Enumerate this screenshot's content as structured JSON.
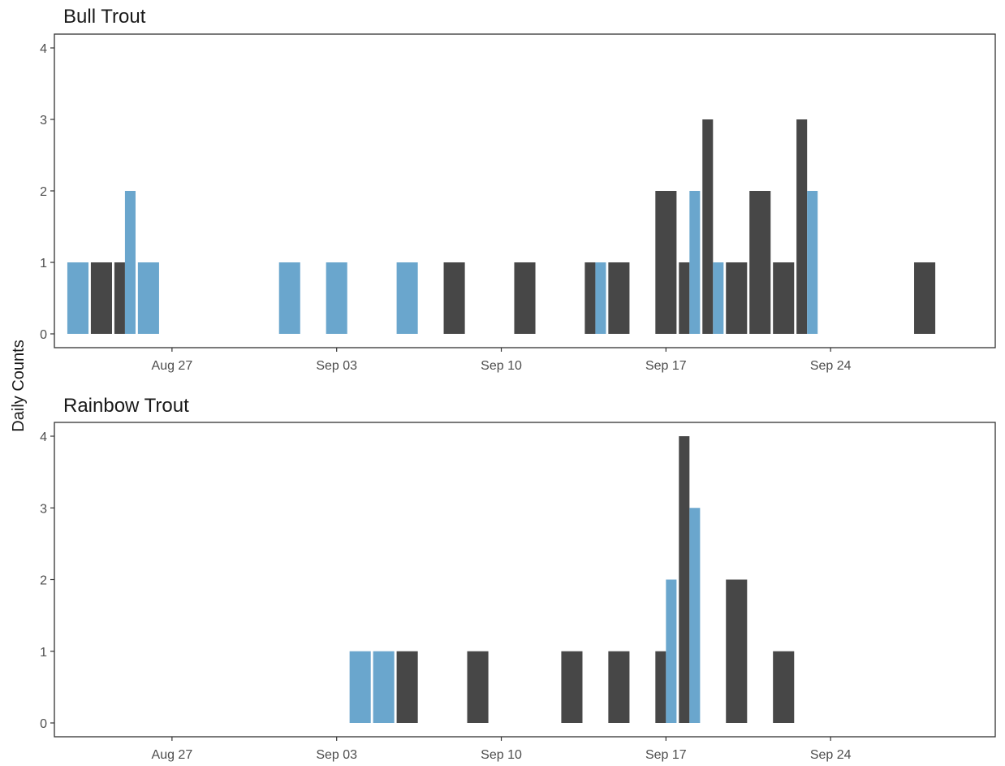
{
  "colors": {
    "series_a": "#6aa6cd",
    "series_b": "#474747",
    "panel_border": "#333333",
    "tick": "#333333"
  },
  "chart_data": {
    "type": "bar",
    "ylabel": "Daily Counts",
    "x_ticks": [
      "Aug 27",
      "Sep 03",
      "Sep 10",
      "Sep 17",
      "Sep 24"
    ],
    "x_tick_dates": [
      "2018-08-27",
      "2018-09-03",
      "2018-09-10",
      "2018-09-17",
      "2018-09-24"
    ],
    "y_ticks": [
      0,
      1,
      2,
      3,
      4
    ],
    "ylim": [
      0,
      4
    ],
    "xlim": [
      "2018-08-22",
      "2018-10-01"
    ],
    "grid": false,
    "panels": [
      {
        "title": "Bull Trout",
        "bars": [
          {
            "date": "2018-08-23",
            "dodge": "full",
            "color": "series_a",
            "value": 1
          },
          {
            "date": "2018-08-24",
            "dodge": "full",
            "color": "series_b",
            "value": 1
          },
          {
            "date": "2018-08-25",
            "dodge": "left",
            "color": "series_b",
            "value": 1
          },
          {
            "date": "2018-08-25",
            "dodge": "right",
            "color": "series_a",
            "value": 2
          },
          {
            "date": "2018-08-26",
            "dodge": "full",
            "color": "series_a",
            "value": 1
          },
          {
            "date": "2018-09-01",
            "dodge": "full",
            "color": "series_a",
            "value": 1
          },
          {
            "date": "2018-09-03",
            "dodge": "full",
            "color": "series_a",
            "value": 1
          },
          {
            "date": "2018-09-06",
            "dodge": "full",
            "color": "series_a",
            "value": 1
          },
          {
            "date": "2018-09-08",
            "dodge": "full",
            "color": "series_b",
            "value": 1
          },
          {
            "date": "2018-09-11",
            "dodge": "full",
            "color": "series_b",
            "value": 1
          },
          {
            "date": "2018-09-14",
            "dodge": "left",
            "color": "series_b",
            "value": 1
          },
          {
            "date": "2018-09-14",
            "dodge": "right",
            "color": "series_a",
            "value": 1
          },
          {
            "date": "2018-09-15",
            "dodge": "full",
            "color": "series_b",
            "value": 1
          },
          {
            "date": "2018-09-17",
            "dodge": "full",
            "color": "series_b",
            "value": 2
          },
          {
            "date": "2018-09-18",
            "dodge": "left",
            "color": "series_b",
            "value": 1
          },
          {
            "date": "2018-09-18",
            "dodge": "right",
            "color": "series_a",
            "value": 2
          },
          {
            "date": "2018-09-19",
            "dodge": "left",
            "color": "series_b",
            "value": 3
          },
          {
            "date": "2018-09-19",
            "dodge": "right",
            "color": "series_a",
            "value": 1
          },
          {
            "date": "2018-09-20",
            "dodge": "full",
            "color": "series_b",
            "value": 1
          },
          {
            "date": "2018-09-21",
            "dodge": "full",
            "color": "series_b",
            "value": 2
          },
          {
            "date": "2018-09-22",
            "dodge": "full",
            "color": "series_b",
            "value": 1
          },
          {
            "date": "2018-09-23",
            "dodge": "left",
            "color": "series_b",
            "value": 3
          },
          {
            "date": "2018-09-23",
            "dodge": "right",
            "color": "series_a",
            "value": 2
          },
          {
            "date": "2018-09-28",
            "dodge": "full",
            "color": "series_b",
            "value": 1
          }
        ]
      },
      {
        "title": "Rainbow Trout",
        "bars": [
          {
            "date": "2018-09-04",
            "dodge": "full",
            "color": "series_a",
            "value": 1
          },
          {
            "date": "2018-09-05",
            "dodge": "full",
            "color": "series_a",
            "value": 1
          },
          {
            "date": "2018-09-06",
            "dodge": "full",
            "color": "series_b",
            "value": 1
          },
          {
            "date": "2018-09-09",
            "dodge": "full",
            "color": "series_b",
            "value": 1
          },
          {
            "date": "2018-09-13",
            "dodge": "full",
            "color": "series_b",
            "value": 1
          },
          {
            "date": "2018-09-15",
            "dodge": "full",
            "color": "series_b",
            "value": 1
          },
          {
            "date": "2018-09-17",
            "dodge": "left",
            "color": "series_b",
            "value": 1
          },
          {
            "date": "2018-09-17",
            "dodge": "right",
            "color": "series_a",
            "value": 2
          },
          {
            "date": "2018-09-18",
            "dodge": "left",
            "color": "series_b",
            "value": 4
          },
          {
            "date": "2018-09-18",
            "dodge": "right",
            "color": "series_a",
            "value": 3
          },
          {
            "date": "2018-09-20",
            "dodge": "full",
            "color": "series_b",
            "value": 2
          },
          {
            "date": "2018-09-22",
            "dodge": "full",
            "color": "series_b",
            "value": 1
          }
        ]
      }
    ]
  }
}
